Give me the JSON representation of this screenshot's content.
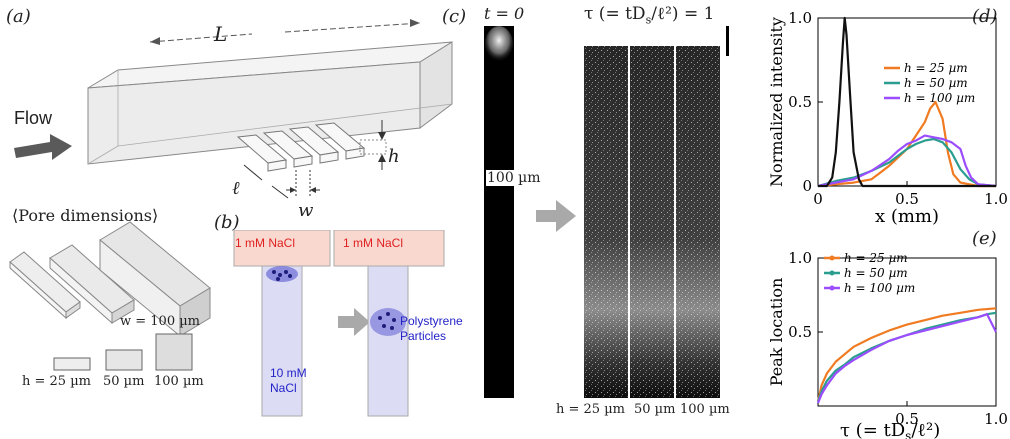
{
  "panels": {
    "a": {
      "label": "(a)",
      "length_label": "L",
      "flow_label": "Flow",
      "ell_label": "ℓ",
      "h_label": "h",
      "w_label": "w",
      "pore_dimensions_title": "⟨Pore dimensions⟩",
      "width_value": "w = 100 µm",
      "h_values": [
        "h = 25 µm",
        "50 µm",
        "100 µm"
      ]
    },
    "b": {
      "label": "(b)",
      "reservoir_left": "1 mM NaCl",
      "reservoir_right": "1 mM NaCl",
      "channel_label_line1": "10 mM",
      "channel_label_line2": "NaCl",
      "particles_line1": "Polystyrene",
      "particles_line2": "Particles"
    },
    "c": {
      "label": "(c)",
      "t0_label": "t = 0",
      "tau_label": "τ (= tD",
      "tau_sub": "s",
      "tau_rest": "/ℓ²) = 1",
      "scale_label": "100 µm",
      "bottom_labels": [
        "h = 25 µm",
        "50 µm",
        "100 µm"
      ]
    },
    "d": {
      "label": "(d)",
      "ylabel": "Normalized intensity",
      "xlabel": "x (mm)"
    },
    "e": {
      "label": "(e)",
      "ylabel": "Peak location",
      "xlabel_main": "τ (= tD",
      "xlabel_sub": "s",
      "xlabel_rest": "/ℓ²)"
    }
  },
  "colors": {
    "h25": "#f07b22",
    "h50": "#2a9d8f",
    "h100": "#9b4dff",
    "initial": "#111111",
    "reservoir": "#f9d8cf",
    "channel": "#dcdcf5",
    "arrow": "#a9a9a9"
  },
  "chart_data": [
    {
      "type": "line",
      "panel": "d",
      "xlabel": "x (mm)",
      "ylabel": "Normalized intensity",
      "xlim": [
        0,
        1.0
      ],
      "ylim": [
        0,
        1.0
      ],
      "xticks": [
        "0",
        "0.5",
        "1.0"
      ],
      "yticks": [
        "0",
        "0.5",
        "1.0"
      ],
      "legend_position": "top-right",
      "series": [
        {
          "name": "h = 25 µm",
          "color": "#f07b22",
          "x": [
            0.0,
            0.1,
            0.2,
            0.3,
            0.35,
            0.4,
            0.45,
            0.5,
            0.55,
            0.6,
            0.63,
            0.66,
            0.7,
            0.73,
            0.76,
            0.8,
            0.85,
            0.9,
            1.0
          ],
          "y": [
            0.0,
            0.01,
            0.02,
            0.04,
            0.08,
            0.12,
            0.17,
            0.22,
            0.3,
            0.38,
            0.46,
            0.5,
            0.4,
            0.2,
            0.07,
            0.02,
            0.01,
            0.0,
            0.0
          ]
        },
        {
          "name": "h = 50 µm",
          "color": "#2a9d8f",
          "x": [
            0.0,
            0.1,
            0.2,
            0.3,
            0.4,
            0.45,
            0.5,
            0.55,
            0.6,
            0.65,
            0.7,
            0.75,
            0.8,
            0.85,
            0.9,
            1.0
          ],
          "y": [
            0.0,
            0.03,
            0.05,
            0.09,
            0.14,
            0.18,
            0.22,
            0.25,
            0.27,
            0.28,
            0.26,
            0.2,
            0.1,
            0.04,
            0.01,
            0.0
          ]
        },
        {
          "name": "h = 100 µm",
          "color": "#9b4dff",
          "x": [
            0.0,
            0.1,
            0.2,
            0.3,
            0.4,
            0.45,
            0.5,
            0.55,
            0.6,
            0.65,
            0.7,
            0.75,
            0.8,
            0.83,
            0.86,
            0.9,
            1.0
          ],
          "y": [
            0.0,
            0.02,
            0.04,
            0.09,
            0.16,
            0.21,
            0.25,
            0.27,
            0.3,
            0.29,
            0.28,
            0.26,
            0.22,
            0.12,
            0.05,
            0.01,
            0.0
          ]
        },
        {
          "name": "t = 0",
          "color": "#111111",
          "x": [
            0.0,
            0.05,
            0.08,
            0.1,
            0.12,
            0.14,
            0.15,
            0.16,
            0.18,
            0.2,
            0.23,
            0.25,
            0.3,
            0.5,
            1.0
          ],
          "y": [
            0.0,
            0.0,
            0.05,
            0.2,
            0.5,
            0.85,
            1.0,
            0.9,
            0.55,
            0.2,
            0.04,
            0.0,
            0.0,
            0.0,
            0.0
          ]
        }
      ]
    },
    {
      "type": "line",
      "panel": "e",
      "xlabel": "τ (= tDs/ℓ²)",
      "ylabel": "Peak location",
      "xlim": [
        0,
        1.0
      ],
      "ylim": [
        0,
        1.0
      ],
      "xticks": [
        "0.5",
        "1.0"
      ],
      "yticks": [
        "0.5",
        "1.0"
      ],
      "legend_position": "top-left",
      "series": [
        {
          "name": "h = 25 µm",
          "color": "#f07b22",
          "x": [
            0.0,
            0.02,
            0.05,
            0.1,
            0.15,
            0.2,
            0.3,
            0.4,
            0.5,
            0.6,
            0.7,
            0.8,
            0.9,
            1.0
          ],
          "y": [
            0.03,
            0.14,
            0.22,
            0.3,
            0.35,
            0.4,
            0.46,
            0.51,
            0.55,
            0.58,
            0.61,
            0.63,
            0.65,
            0.66
          ]
        },
        {
          "name": "h = 50 µm",
          "color": "#2a9d8f",
          "x": [
            0.0,
            0.02,
            0.05,
            0.1,
            0.15,
            0.2,
            0.3,
            0.4,
            0.5,
            0.6,
            0.7,
            0.8,
            0.9,
            0.95,
            1.0
          ],
          "y": [
            0.03,
            0.1,
            0.17,
            0.24,
            0.28,
            0.33,
            0.39,
            0.44,
            0.48,
            0.52,
            0.55,
            0.58,
            0.6,
            0.62,
            0.63
          ]
        },
        {
          "name": "h = 100 µm",
          "color": "#9b4dff",
          "x": [
            0.0,
            0.02,
            0.05,
            0.1,
            0.15,
            0.2,
            0.3,
            0.4,
            0.5,
            0.6,
            0.7,
            0.8,
            0.9,
            0.95,
            1.0
          ],
          "y": [
            0.02,
            0.08,
            0.14,
            0.22,
            0.27,
            0.31,
            0.38,
            0.44,
            0.48,
            0.51,
            0.54,
            0.57,
            0.6,
            0.62,
            0.5
          ]
        }
      ]
    }
  ]
}
